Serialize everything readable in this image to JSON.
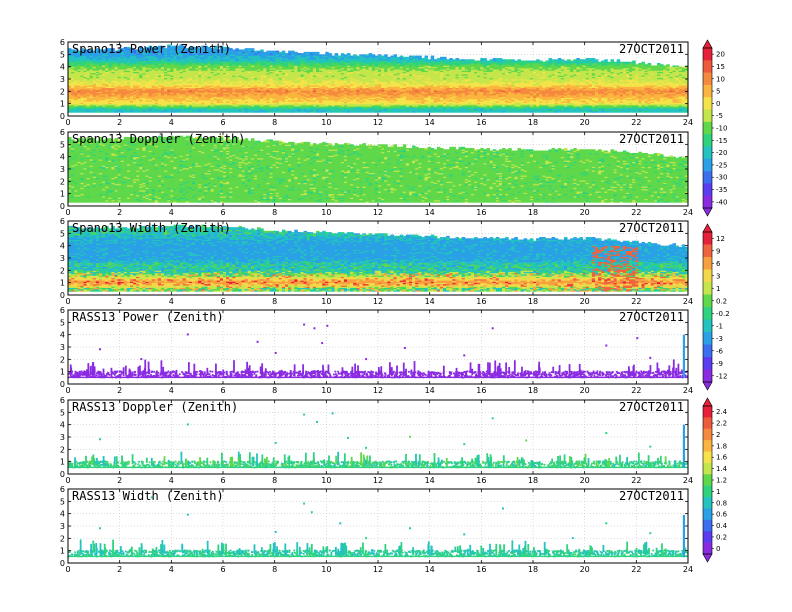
{
  "chart_data": [
    {
      "type": "heatmap",
      "title": "Spano13 Power (Zenith)",
      "date": "27OCT2011",
      "xlim": [
        0,
        24
      ],
      "ylim": [
        0,
        6
      ],
      "xticks": [
        "0",
        "2",
        "4",
        "6",
        "8",
        "10",
        "12",
        "14",
        "16",
        "18",
        "20",
        "22",
        "24"
      ],
      "yticks": [
        "0",
        "1",
        "2",
        "3",
        "4",
        "5",
        "6"
      ],
      "colorbar": "A",
      "grid": true,
      "data": {
        "hour": [
          0,
          2,
          4,
          6,
          8,
          10,
          12,
          14,
          16,
          18,
          20,
          22,
          24
        ],
        "top_km": [
          5.4,
          5.4,
          5.6,
          5.5,
          5.2,
          5.0,
          4.9,
          4.7,
          4.6,
          4.5,
          4.6,
          4.3,
          3.9
        ],
        "profile_heights_km": [
          0.5,
          1.0,
          1.5,
          2.0,
          2.5,
          3.0,
          3.5,
          4.0,
          4.5,
          5.0
        ],
        "profile_values": [
          -20,
          0,
          5,
          10,
          0,
          -5,
          -5,
          -10,
          -20,
          -25
        ]
      }
    },
    {
      "type": "heatmap",
      "title": "Spano13 Doppler (Zenith)",
      "date": "27OCT2011",
      "xlim": [
        0,
        24
      ],
      "ylim": [
        0,
        6
      ],
      "xticks": [
        "0",
        "2",
        "4",
        "6",
        "8",
        "10",
        "12",
        "14",
        "16",
        "18",
        "20",
        "22",
        "24"
      ],
      "yticks": [
        "0",
        "1",
        "2",
        "3",
        "4",
        "5",
        "6"
      ],
      "colorbar": "A",
      "grid": true,
      "data": {
        "hour": [
          0,
          2,
          4,
          6,
          8,
          10,
          12,
          14,
          16,
          18,
          20,
          22,
          24
        ],
        "top_km": [
          5.4,
          5.4,
          5.6,
          5.5,
          5.2,
          5.0,
          4.9,
          4.7,
          4.6,
          4.5,
          4.6,
          4.3,
          3.9
        ],
        "profile_heights_km": [
          0.5,
          1.5,
          2.5,
          3.5,
          4.5
        ],
        "profile_values": [
          -10,
          -10,
          -10,
          -10,
          -10
        ]
      }
    },
    {
      "type": "heatmap",
      "title": "Spano13 Width (Zenith)",
      "date": "27OCT2011",
      "xlim": [
        0,
        24
      ],
      "ylim": [
        0,
        6
      ],
      "xticks": [
        "0",
        "2",
        "4",
        "6",
        "8",
        "10",
        "12",
        "14",
        "16",
        "18",
        "20",
        "22",
        "24"
      ],
      "yticks": [
        "0",
        "1",
        "2",
        "3",
        "4",
        "5",
        "6"
      ],
      "colorbar": "B",
      "grid": true,
      "data": {
        "hour": [
          0,
          2,
          4,
          6,
          8,
          10,
          12,
          14,
          16,
          18,
          20,
          22,
          24
        ],
        "top_km": [
          5.4,
          5.4,
          5.6,
          5.5,
          5.2,
          5.0,
          4.9,
          4.7,
          4.6,
          4.5,
          4.6,
          4.3,
          3.9
        ],
        "profile_heights_km": [
          0.5,
          1.0,
          1.5,
          2.0,
          2.5,
          3.0,
          4.0,
          5.0
        ],
        "profile_values": [
          0.2,
          6,
          1,
          -1,
          -1,
          -3,
          -3,
          -1
        ]
      }
    },
    {
      "type": "scatter",
      "title": "RASS13 Power (Zenith)",
      "date": "27OCT2011",
      "xlim": [
        0,
        24
      ],
      "ylim": [
        0,
        6
      ],
      "xticks": [
        "0",
        "2",
        "4",
        "6",
        "8",
        "10",
        "12",
        "14",
        "16",
        "18",
        "20",
        "22",
        "24"
      ],
      "yticks": [
        "0",
        "1",
        "2",
        "3",
        "4",
        "5",
        "6"
      ],
      "colorbar": "B",
      "grid": true,
      "data": {
        "typical_value": -12,
        "low_range_km": [
          0.5,
          1.8
        ],
        "core_band_km": [
          0.6,
          1.1
        ],
        "spike_hour": 23.8,
        "spike_top_km": 4.0,
        "sparse_points": [
          [
            1.2,
            2.9
          ],
          [
            2.8,
            2.1
          ],
          [
            4.6,
            4.1
          ],
          [
            7.3,
            3.5
          ],
          [
            8.0,
            2.6
          ],
          [
            9.1,
            4.9
          ],
          [
            9.5,
            4.6
          ],
          [
            9.8,
            3.4
          ],
          [
            10.0,
            4.8
          ],
          [
            11.5,
            2.1
          ],
          [
            13.0,
            3.0
          ],
          [
            15.3,
            2.4
          ],
          [
            16.4,
            4.6
          ],
          [
            20.8,
            3.2
          ],
          [
            22.0,
            3.8
          ],
          [
            22.5,
            2.2
          ]
        ]
      }
    },
    {
      "type": "scatter",
      "title": "RASS13 Doppler (Zenith)",
      "date": "27OCT2011",
      "xlim": [
        0,
        24
      ],
      "ylim": [
        0,
        6
      ],
      "xticks": [
        "0",
        "2",
        "4",
        "6",
        "8",
        "10",
        "12",
        "14",
        "16",
        "18",
        "20",
        "22",
        "24"
      ],
      "yticks": [
        "0",
        "1",
        "2",
        "3",
        "4",
        "5",
        "6"
      ],
      "colorbar": "C",
      "grid": true,
      "data": {
        "typical_value": 1.0,
        "low_range_km": [
          0.5,
          1.8
        ],
        "core_band_km": [
          0.6,
          1.1
        ],
        "spike_hour": 23.8,
        "spike_top_km": 4.0,
        "sparse_points": [
          [
            1.2,
            2.9
          ],
          [
            4.6,
            4.1
          ],
          [
            8.0,
            2.6
          ],
          [
            9.1,
            4.9
          ],
          [
            9.6,
            4.3
          ],
          [
            10.2,
            5.0
          ],
          [
            10.8,
            3.0
          ],
          [
            11.5,
            2.2
          ],
          [
            13.2,
            3.1
          ],
          [
            15.3,
            2.5
          ],
          [
            16.4,
            4.6
          ],
          [
            17.7,
            2.8
          ],
          [
            20.8,
            3.4
          ],
          [
            22.5,
            2.3
          ]
        ]
      }
    },
    {
      "type": "scatter",
      "title": "RASS13 Width (Zenith)",
      "date": "27OCT2011",
      "xlim": [
        0,
        24
      ],
      "ylim": [
        0,
        6
      ],
      "xticks": [
        "0",
        "2",
        "4",
        "6",
        "8",
        "10",
        "12",
        "14",
        "16",
        "18",
        "20",
        "22",
        "24"
      ],
      "yticks": [
        "0",
        "1",
        "2",
        "3",
        "4",
        "5",
        "6"
      ],
      "colorbar": "C",
      "grid": true,
      "data": {
        "typical_value": 0.9,
        "low_range_km": [
          0.5,
          1.8
        ],
        "core_band_km": [
          0.6,
          1.1
        ],
        "spike_hour": 23.8,
        "spike_top_km": 3.9,
        "sparse_points": [
          [
            1.2,
            2.9
          ],
          [
            3.2,
            5.4
          ],
          [
            4.6,
            4.0
          ],
          [
            8.0,
            2.6
          ],
          [
            9.1,
            4.9
          ],
          [
            9.4,
            4.2
          ],
          [
            10.5,
            3.3
          ],
          [
            11.5,
            2.1
          ],
          [
            13.2,
            2.9
          ],
          [
            15.3,
            2.4
          ],
          [
            16.8,
            4.5
          ],
          [
            19.5,
            2.1
          ],
          [
            20.8,
            3.3
          ],
          [
            22.5,
            2.5
          ]
        ]
      }
    }
  ],
  "colorbars": {
    "A": {
      "ticks": [
        "20",
        "15",
        "10",
        "5",
        "0",
        "-5",
        "-10",
        "-15",
        "-20",
        "-25",
        "-30",
        "-35",
        "-40"
      ],
      "values": [
        20,
        15,
        10,
        5,
        0,
        -5,
        -10,
        -15,
        -20,
        -25,
        -30,
        -35,
        -40
      ],
      "colors": [
        "#e8213a",
        "#ee5a3c",
        "#f58a3e",
        "#fbb43e",
        "#f5e34a",
        "#c4e64b",
        "#5fd84a",
        "#2ed37f",
        "#23c3c0",
        "#2aa0e6",
        "#3c6ff0",
        "#5b3cf0",
        "#8a2be2"
      ]
    },
    "B": {
      "ticks": [
        "12",
        "9",
        "6",
        "3",
        "1",
        "0.2",
        "-0.2",
        "-1",
        "-3",
        "-6",
        "-9",
        "-12"
      ],
      "values": [
        12,
        9,
        6,
        3,
        1,
        0.2,
        -0.2,
        -1,
        -3,
        -6,
        -9,
        -12
      ],
      "colors": [
        "#e8213a",
        "#f0643d",
        "#f8a03f",
        "#f5d84a",
        "#c4e64b",
        "#5fd84a",
        "#2ed37f",
        "#23c3c0",
        "#2aa0e6",
        "#3c6ff0",
        "#5b3cf0",
        "#8a2be2"
      ]
    },
    "C": {
      "ticks": [
        "2.4",
        "2.2",
        "2",
        "1.8",
        "1.6",
        "1.4",
        "1.2",
        "1",
        "0.8",
        "0.6",
        "0.4",
        "0.2",
        "0"
      ],
      "values": [
        2.4,
        2.2,
        2.0,
        1.8,
        1.6,
        1.4,
        1.2,
        1.0,
        0.8,
        0.6,
        0.4,
        0.2,
        0
      ],
      "colors": [
        "#e8213a",
        "#ee5a3c",
        "#f58a3e",
        "#fbb43e",
        "#f5e34a",
        "#c4e64b",
        "#5fd84a",
        "#2ed37f",
        "#23c3c0",
        "#2aa0e6",
        "#3c6ff0",
        "#5b3cf0",
        "#8a2be2"
      ]
    }
  }
}
